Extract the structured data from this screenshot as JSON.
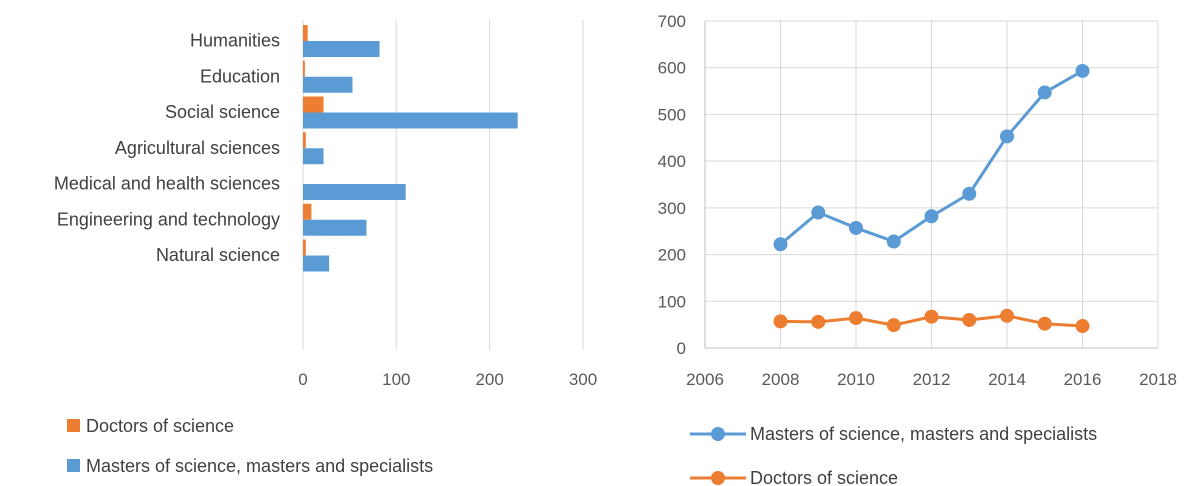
{
  "chart_data": [
    {
      "type": "bar",
      "orientation": "horizontal",
      "categories": [
        "Humanities",
        "Education",
        "Social science",
        "Agricultural sciences",
        "Medical and health sciences",
        "Engineering and technology",
        "Natural science"
      ],
      "series": [
        {
          "name": "Doctors of science",
          "color": "#ED7D31",
          "values": [
            5,
            2,
            22,
            3,
            0,
            9,
            3
          ]
        },
        {
          "name": "Masters of science, masters and specialists",
          "color": "#5B9BD5",
          "values": [
            82,
            53,
            230,
            22,
            110,
            68,
            28
          ]
        }
      ],
      "xlim": [
        0,
        300
      ],
      "xticks": [
        "0",
        "100",
        "200",
        "300"
      ],
      "grid": "vertical",
      "legend_position": "bottom-left"
    },
    {
      "type": "line",
      "x": [
        2008,
        2009,
        2010,
        2011,
        2012,
        2013,
        2014,
        2015,
        2016
      ],
      "series": [
        {
          "name": "Masters of science, masters and specialists",
          "color": "#5B9BD5",
          "values": [
            222,
            290,
            257,
            228,
            282,
            330,
            453,
            547,
            593
          ]
        },
        {
          "name": "Doctors of science",
          "color": "#ED7D31",
          "values": [
            57,
            56,
            64,
            49,
            67,
            60,
            69,
            52,
            47
          ]
        }
      ],
      "xlim": [
        2006,
        2018
      ],
      "ylim": [
        0,
        700
      ],
      "xticks": [
        "2006",
        "2008",
        "2010",
        "2012",
        "2014",
        "2016",
        "2018"
      ],
      "yticks": [
        "0",
        "100",
        "200",
        "300",
        "400",
        "500",
        "600",
        "700"
      ],
      "grid": "both",
      "legend_position": "bottom-right"
    }
  ]
}
